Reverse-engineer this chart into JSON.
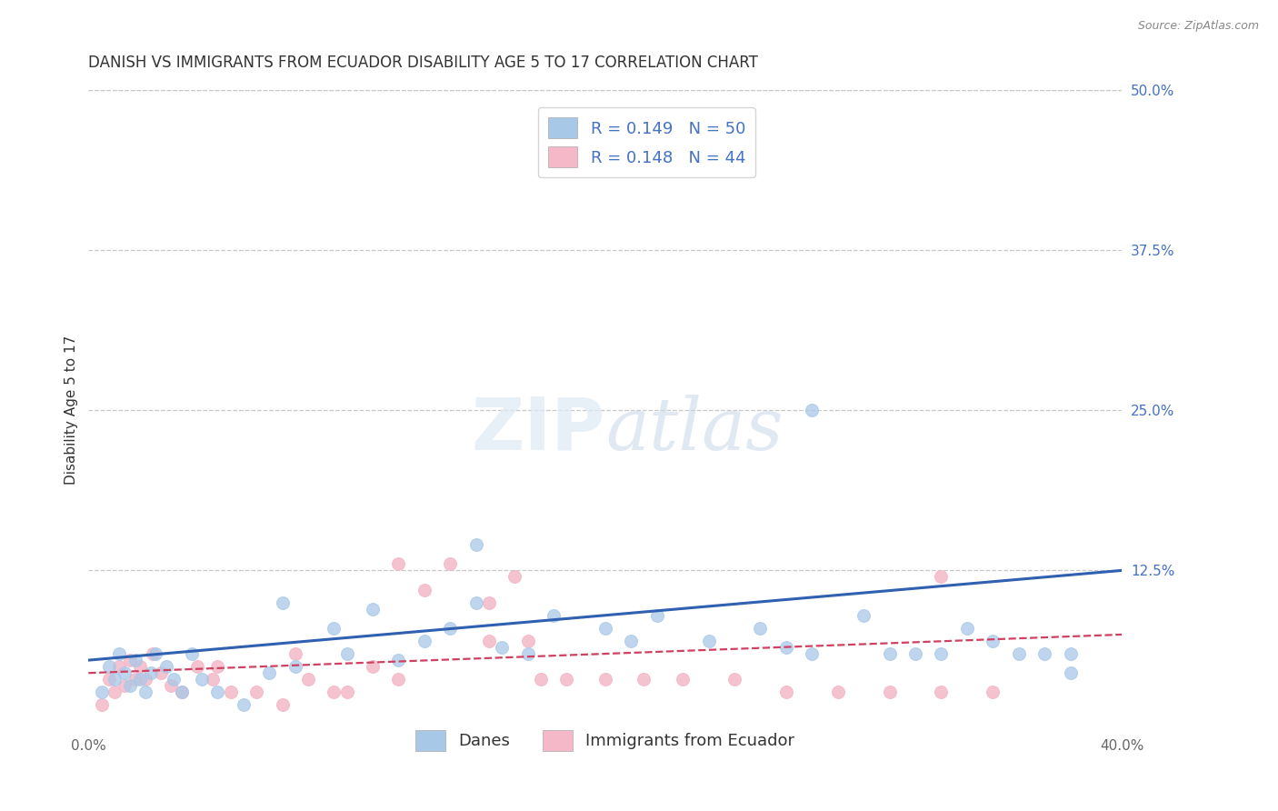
{
  "title": "DANISH VS IMMIGRANTS FROM ECUADOR DISABILITY AGE 5 TO 17 CORRELATION CHART",
  "source": "Source: ZipAtlas.com",
  "ylabel": "Disability Age 5 to 17",
  "xlim": [
    0.0,
    0.4
  ],
  "ylim": [
    0.0,
    0.5
  ],
  "ytick_labels_right": [
    "50.0%",
    "37.5%",
    "25.0%",
    "12.5%"
  ],
  "yticks_right": [
    0.5,
    0.375,
    0.25,
    0.125
  ],
  "R_danes": 0.149,
  "N_danes": 50,
  "R_ecuador": 0.148,
  "N_ecuador": 44,
  "danes_color": "#a8c8e8",
  "ecuador_color": "#f4b8c8",
  "trend_danes_color": "#3060b0",
  "trend_ecuador_color": "#d04060",
  "background_color": "#ffffff",
  "grid_color": "#c8c8c8",
  "label_color": "#4472c4",
  "danes_scatter_x": [
    0.005,
    0.008,
    0.01,
    0.012,
    0.014,
    0.016,
    0.018,
    0.02,
    0.022,
    0.024,
    0.026,
    0.03,
    0.033,
    0.036,
    0.04,
    0.044,
    0.05,
    0.06,
    0.07,
    0.075,
    0.08,
    0.095,
    0.1,
    0.11,
    0.12,
    0.13,
    0.14,
    0.15,
    0.16,
    0.17,
    0.18,
    0.2,
    0.21,
    0.22,
    0.24,
    0.26,
    0.27,
    0.28,
    0.3,
    0.31,
    0.32,
    0.33,
    0.34,
    0.35,
    0.36,
    0.37,
    0.38,
    0.15,
    0.28,
    0.38
  ],
  "danes_scatter_y": [
    0.03,
    0.05,
    0.04,
    0.06,
    0.045,
    0.035,
    0.055,
    0.04,
    0.03,
    0.045,
    0.06,
    0.05,
    0.04,
    0.03,
    0.06,
    0.04,
    0.03,
    0.02,
    0.045,
    0.1,
    0.05,
    0.08,
    0.06,
    0.095,
    0.055,
    0.07,
    0.08,
    0.1,
    0.065,
    0.06,
    0.09,
    0.08,
    0.07,
    0.09,
    0.07,
    0.08,
    0.065,
    0.06,
    0.09,
    0.06,
    0.06,
    0.06,
    0.08,
    0.07,
    0.06,
    0.06,
    0.06,
    0.145,
    0.25,
    0.045
  ],
  "ecuador_scatter_x": [
    0.005,
    0.008,
    0.01,
    0.012,
    0.014,
    0.016,
    0.018,
    0.02,
    0.022,
    0.025,
    0.028,
    0.032,
    0.036,
    0.042,
    0.048,
    0.055,
    0.065,
    0.075,
    0.085,
    0.095,
    0.11,
    0.12,
    0.13,
    0.14,
    0.155,
    0.165,
    0.175,
    0.185,
    0.2,
    0.215,
    0.23,
    0.25,
    0.27,
    0.29,
    0.31,
    0.33,
    0.12,
    0.155,
    0.17,
    0.33,
    0.05,
    0.08,
    0.1,
    0.35
  ],
  "ecuador_scatter_y": [
    0.02,
    0.04,
    0.03,
    0.05,
    0.035,
    0.055,
    0.04,
    0.05,
    0.04,
    0.06,
    0.045,
    0.035,
    0.03,
    0.05,
    0.04,
    0.03,
    0.03,
    0.02,
    0.04,
    0.03,
    0.05,
    0.04,
    0.11,
    0.13,
    0.1,
    0.12,
    0.04,
    0.04,
    0.04,
    0.04,
    0.04,
    0.04,
    0.03,
    0.03,
    0.03,
    0.03,
    0.13,
    0.07,
    0.07,
    0.12,
    0.05,
    0.06,
    0.03,
    0.03
  ],
  "title_fontsize": 12,
  "axis_label_fontsize": 11,
  "tick_fontsize": 11,
  "legend_fontsize": 13
}
